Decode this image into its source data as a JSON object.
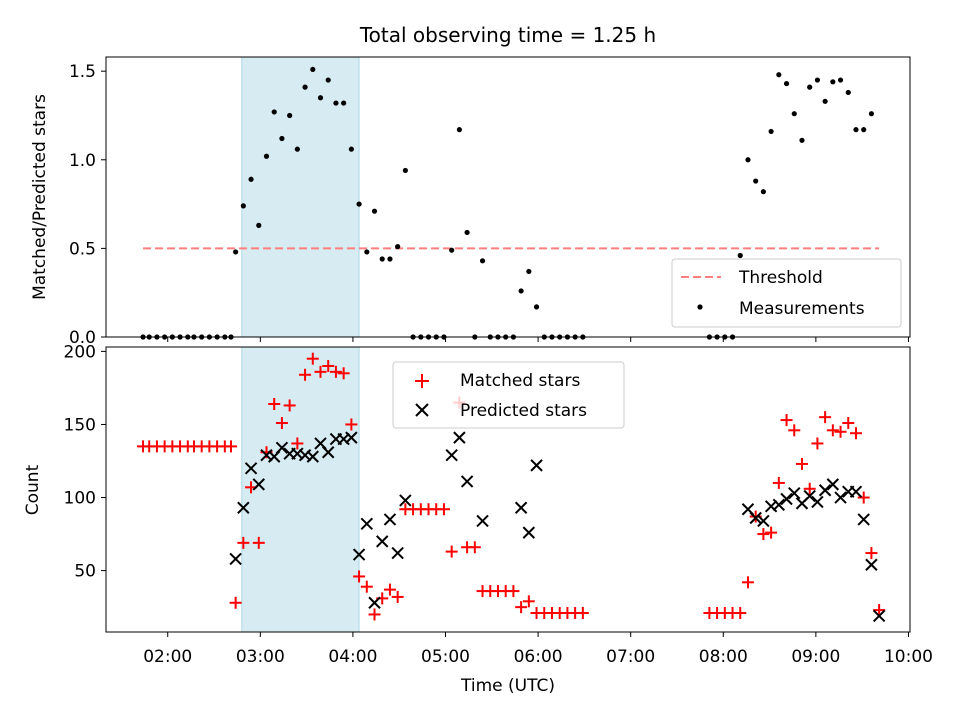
{
  "chart_data": [
    {
      "type": "scatter",
      "title": "Total observing time = 1.25 h",
      "ylabel": "Matched/Predicted stars",
      "ylim": [
        0,
        1.58
      ],
      "xlim": [
        "01:20",
        "10:01"
      ],
      "yticks": [
        "0.0",
        "0.5",
        "1.0",
        "1.5"
      ],
      "highlight_span": [
        "02:48",
        "04:04"
      ],
      "grid": false,
      "legend": "bottom-right",
      "threshold": {
        "name": "Threshold",
        "value": 0.5,
        "x": [
          "01:44",
          "09:41"
        ],
        "color": "#ff7f7f"
      },
      "series": [
        {
          "name": "Measurements",
          "color": "#000000",
          "points": [
            [
              "01:44",
              0
            ],
            [
              "01:48",
              0
            ],
            [
              "01:53",
              0
            ],
            [
              "01:58",
              0
            ],
            [
              "02:03",
              0
            ],
            [
              "02:08",
              0
            ],
            [
              "02:13",
              0
            ],
            [
              "02:17",
              0
            ],
            [
              "02:22",
              0
            ],
            [
              "02:27",
              0
            ],
            [
              "02:32",
              0
            ],
            [
              "02:37",
              0
            ],
            [
              "02:41",
              0
            ],
            [
              "02:44",
              0.48
            ],
            [
              "02:49",
              0.74
            ],
            [
              "02:54",
              0.89
            ],
            [
              "02:59",
              0.63
            ],
            [
              "03:04",
              1.02
            ],
            [
              "03:09",
              1.27
            ],
            [
              "03:14",
              1.12
            ],
            [
              "03:19",
              1.25
            ],
            [
              "03:24",
              1.06
            ],
            [
              "03:29",
              1.41
            ],
            [
              "03:34",
              1.51
            ],
            [
              "03:39",
              1.35
            ],
            [
              "03:44",
              1.45
            ],
            [
              "03:49",
              1.32
            ],
            [
              "03:54",
              1.32
            ],
            [
              "03:59",
              1.06
            ],
            [
              "04:04",
              0.75
            ],
            [
              "04:09",
              0.48
            ],
            [
              "04:14",
              0.71
            ],
            [
              "04:19",
              0.44
            ],
            [
              "04:24",
              0.44
            ],
            [
              "04:29",
              0.51
            ],
            [
              "04:34",
              0.94
            ],
            [
              "04:39",
              0
            ],
            [
              "04:44",
              0
            ],
            [
              "04:49",
              0
            ],
            [
              "04:54",
              0
            ],
            [
              "04:59",
              0
            ],
            [
              "05:04",
              0.49
            ],
            [
              "05:09",
              1.17
            ],
            [
              "05:14",
              0.59
            ],
            [
              "05:19",
              0
            ],
            [
              "05:24",
              0.43
            ],
            [
              "05:29",
              0
            ],
            [
              "05:34",
              0
            ],
            [
              "05:39",
              0
            ],
            [
              "05:44",
              0
            ],
            [
              "05:49",
              0.26
            ],
            [
              "05:54",
              0.37
            ],
            [
              "05:59",
              0.17
            ],
            [
              "06:04",
              0
            ],
            [
              "06:09",
              0
            ],
            [
              "06:14",
              0
            ],
            [
              "06:19",
              0
            ],
            [
              "06:24",
              0
            ],
            [
              "06:29",
              0
            ],
            [
              "07:51",
              0
            ],
            [
              "07:56",
              0
            ],
            [
              "08:01",
              0
            ],
            [
              "08:06",
              0
            ],
            [
              "08:11",
              0.46
            ],
            [
              "08:16",
              1.0
            ],
            [
              "08:21",
              0.88
            ],
            [
              "08:26",
              0.82
            ],
            [
              "08:31",
              1.16
            ],
            [
              "08:36",
              1.48
            ],
            [
              "08:41",
              1.43
            ],
            [
              "08:46",
              1.26
            ],
            [
              "08:51",
              1.11
            ],
            [
              "08:56",
              1.41
            ],
            [
              "09:01",
              1.45
            ],
            [
              "09:06",
              1.33
            ],
            [
              "09:11",
              1.44
            ],
            [
              "09:16",
              1.45
            ],
            [
              "09:21",
              1.38
            ],
            [
              "09:26",
              1.17
            ],
            [
              "09:31",
              1.17
            ],
            [
              "09:36",
              1.26
            ]
          ]
        }
      ]
    },
    {
      "type": "scatter",
      "xlabel": "Time (UTC)",
      "ylabel": "Count",
      "ylim": [
        8,
        203
      ],
      "xlim": [
        "01:20",
        "10:01"
      ],
      "xticks": [
        "02:00",
        "03:00",
        "04:00",
        "05:00",
        "06:00",
        "07:00",
        "08:00",
        "09:00",
        "10:00"
      ],
      "yticks": [
        "50",
        "100",
        "150",
        "200"
      ],
      "highlight_span": [
        "02:48",
        "04:04"
      ],
      "grid": false,
      "legend": "top-center",
      "series": [
        {
          "name": "Matched stars",
          "marker": "+",
          "color": "#ff0000",
          "points": [
            [
              "01:44",
              135
            ],
            [
              "01:48",
              135
            ],
            [
              "01:53",
              135
            ],
            [
              "01:58",
              135
            ],
            [
              "02:03",
              135
            ],
            [
              "02:08",
              135
            ],
            [
              "02:13",
              135
            ],
            [
              "02:17",
              135
            ],
            [
              "02:22",
              135
            ],
            [
              "02:27",
              135
            ],
            [
              "02:32",
              135
            ],
            [
              "02:37",
              135
            ],
            [
              "02:41",
              135
            ],
            [
              "02:44",
              28
            ],
            [
              "02:49",
              69
            ],
            [
              "02:54",
              107
            ],
            [
              "02:59",
              69
            ],
            [
              "03:04",
              131
            ],
            [
              "03:09",
              164
            ],
            [
              "03:14",
              151
            ],
            [
              "03:19",
              163
            ],
            [
              "03:24",
              137
            ],
            [
              "03:29",
              184
            ],
            [
              "03:34",
              195
            ],
            [
              "03:39",
              186
            ],
            [
              "03:44",
              190
            ],
            [
              "03:49",
              186
            ],
            [
              "03:54",
              185
            ],
            [
              "03:59",
              150
            ],
            [
              "04:04",
              46
            ],
            [
              "04:09",
              39
            ],
            [
              "04:14",
              20
            ],
            [
              "04:19",
              31
            ],
            [
              "04:24",
              37
            ],
            [
              "04:29",
              32
            ],
            [
              "04:34",
              92
            ],
            [
              "04:39",
              92
            ],
            [
              "04:44",
              92
            ],
            [
              "04:49",
              92
            ],
            [
              "04:54",
              92
            ],
            [
              "04:59",
              92
            ],
            [
              "05:04",
              63
            ],
            [
              "05:09",
              165
            ],
            [
              "05:14",
              66
            ],
            [
              "05:19",
              66
            ],
            [
              "05:24",
              36
            ],
            [
              "05:29",
              36
            ],
            [
              "05:34",
              36
            ],
            [
              "05:39",
              36
            ],
            [
              "05:44",
              36
            ],
            [
              "05:49",
              25
            ],
            [
              "05:54",
              29
            ],
            [
              "05:59",
              21
            ],
            [
              "06:04",
              21
            ],
            [
              "06:09",
              21
            ],
            [
              "06:14",
              21
            ],
            [
              "06:19",
              21
            ],
            [
              "06:24",
              21
            ],
            [
              "06:29",
              21
            ],
            [
              "07:51",
              21
            ],
            [
              "07:56",
              21
            ],
            [
              "08:01",
              21
            ],
            [
              "08:06",
              21
            ],
            [
              "08:11",
              21
            ],
            [
              "08:16",
              42
            ],
            [
              "08:21",
              87
            ],
            [
              "08:26",
              75
            ],
            [
              "08:31",
              76
            ],
            [
              "08:36",
              110
            ],
            [
              "08:41",
              153
            ],
            [
              "08:46",
              146
            ],
            [
              "08:51",
              123
            ],
            [
              "08:56",
              106
            ],
            [
              "09:01",
              137
            ],
            [
              "09:06",
              155
            ],
            [
              "09:11",
              146
            ],
            [
              "09:16",
              145
            ],
            [
              "09:21",
              151
            ],
            [
              "09:26",
              144
            ],
            [
              "09:31",
              100
            ],
            [
              "09:36",
              62
            ],
            [
              "09:41",
              23
            ]
          ]
        },
        {
          "name": "Predicted stars",
          "marker": "x",
          "color": "#000000",
          "points": [
            [
              "02:44",
              58
            ],
            [
              "02:49",
              93
            ],
            [
              "02:54",
              120
            ],
            [
              "02:59",
              109
            ],
            [
              "03:04",
              129
            ],
            [
              "03:09",
              128
            ],
            [
              "03:14",
              134
            ],
            [
              "03:19",
              130
            ],
            [
              "03:24",
              130
            ],
            [
              "03:29",
              129
            ],
            [
              "03:34",
              128
            ],
            [
              "03:39",
              137
            ],
            [
              "03:44",
              131
            ],
            [
              "03:49",
              140
            ],
            [
              "03:54",
              140
            ],
            [
              "03:59",
              141
            ],
            [
              "04:04",
              61
            ],
            [
              "04:09",
              82
            ],
            [
              "04:14",
              28
            ],
            [
              "04:19",
              70
            ],
            [
              "04:24",
              85
            ],
            [
              "04:29",
              62
            ],
            [
              "04:34",
              98
            ],
            [
              "05:04",
              129
            ],
            [
              "05:09",
              141
            ],
            [
              "05:14",
              111
            ],
            [
              "05:24",
              84
            ],
            [
              "05:49",
              93
            ],
            [
              "05:54",
              76
            ],
            [
              "05:59",
              122
            ],
            [
              "08:16",
              92
            ],
            [
              "08:21",
              86
            ],
            [
              "08:26",
              84
            ],
            [
              "08:31",
              94
            ],
            [
              "08:36",
              95
            ],
            [
              "08:41",
              99
            ],
            [
              "08:46",
              103
            ],
            [
              "08:51",
              96
            ],
            [
              "08:56",
              101
            ],
            [
              "09:01",
              97
            ],
            [
              "09:06",
              105
            ],
            [
              "09:11",
              109
            ],
            [
              "09:16",
              100
            ],
            [
              "09:21",
              104
            ],
            [
              "09:26",
              104
            ],
            [
              "09:31",
              85
            ],
            [
              "09:36",
              54
            ],
            [
              "09:41",
              19
            ]
          ]
        }
      ]
    }
  ]
}
